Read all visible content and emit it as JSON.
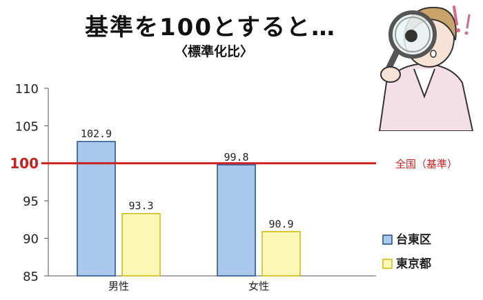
{
  "title": "基準を100とすると…",
  "subtitle": "〈標準化比〉",
  "chart_data": {
    "type": "bar",
    "categories": [
      "男性",
      "女性"
    ],
    "series": [
      {
        "name": "台東区",
        "values": [
          102.9,
          99.8
        ],
        "color": "#a9c8ec",
        "stroke": "#1f4e8c"
      },
      {
        "name": "東京都",
        "values": [
          93.3,
          90.9
        ],
        "color": "#fdf8b8",
        "stroke": "#d4b800"
      }
    ],
    "value_labels": [
      [
        "102.9",
        "99.8"
      ],
      [
        "93.3",
        "90.9"
      ]
    ],
    "ylim": [
      85,
      110
    ],
    "yticks": [
      "85",
      "90",
      "95",
      "100",
      "105",
      "110"
    ],
    "reference_line": {
      "value": 100,
      "label": "全国（基準）",
      "color": "#cc1f1f"
    },
    "grid": false,
    "legend_position": "right"
  },
  "illustration": {
    "icon": "magnifying-glass-person-icon"
  }
}
